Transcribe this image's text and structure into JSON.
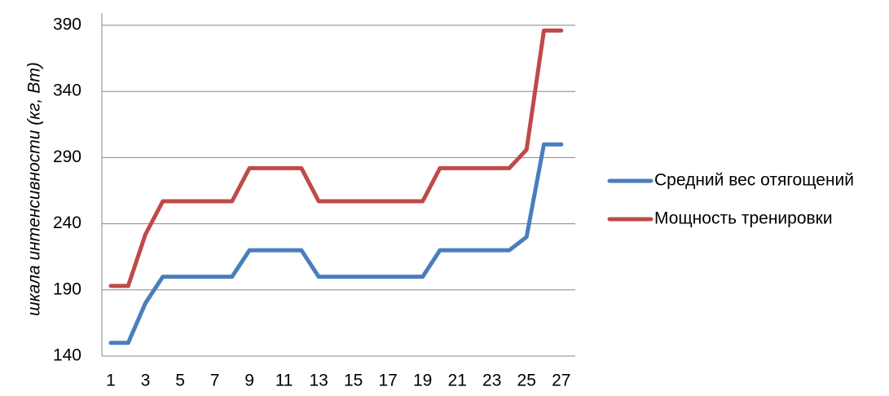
{
  "chart_data": {
    "type": "line",
    "title": "",
    "xlabel": "",
    "ylabel": "шкала интенсивности (кг, Вт)",
    "x": [
      1,
      2,
      3,
      4,
      5,
      6,
      7,
      8,
      9,
      10,
      11,
      12,
      13,
      14,
      15,
      16,
      17,
      18,
      19,
      20,
      21,
      22,
      23,
      24,
      25,
      26,
      27
    ],
    "x_tick_labels": [
      "1",
      "3",
      "5",
      "7",
      "9",
      "11",
      "13",
      "15",
      "17",
      "19",
      "21",
      "23",
      "25",
      "27"
    ],
    "y_tick_labels": [
      "140",
      "190",
      "240",
      "290",
      "340",
      "390"
    ],
    "ylim": [
      140,
      390
    ],
    "grid": true,
    "legend_position": "right",
    "series": [
      {
        "name": "Средний вес отягощений",
        "color": "#4a7ebb",
        "values": [
          150,
          150,
          180,
          200,
          200,
          200,
          200,
          200,
          220,
          220,
          220,
          220,
          200,
          200,
          200,
          200,
          200,
          200,
          200,
          220,
          220,
          220,
          220,
          220,
          230,
          300,
          300
        ]
      },
      {
        "name": "Мощность тренировки",
        "color": "#be4b48",
        "values": [
          193,
          193,
          232,
          257,
          257,
          257,
          257,
          257,
          282,
          282,
          282,
          282,
          257,
          257,
          257,
          257,
          257,
          257,
          257,
          282,
          282,
          282,
          282,
          282,
          296,
          386,
          386
        ]
      }
    ]
  }
}
